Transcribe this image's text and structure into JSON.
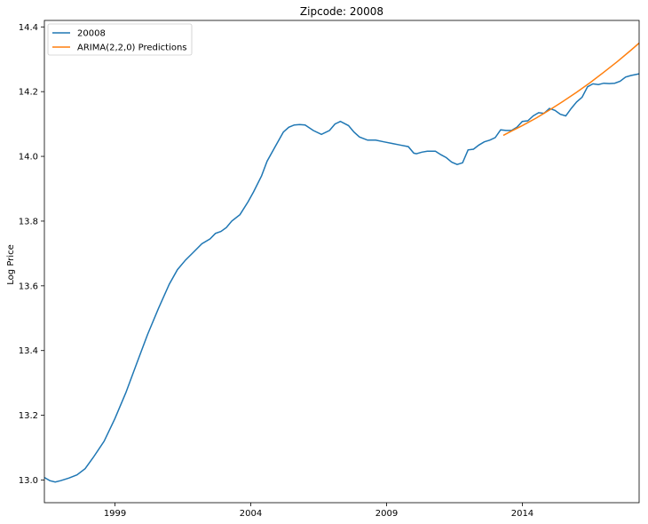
{
  "chart_data": {
    "type": "line",
    "title": "Zipcode: 20008",
    "xlabel": "",
    "ylabel": "Log Price",
    "xlim": [
      1996.4,
      2018.3
    ],
    "ylim": [
      12.93,
      14.42
    ],
    "x_ticks": [
      1999,
      2004,
      2009,
      2014
    ],
    "x_tick_labels": [
      "1999",
      "2004",
      "2009",
      "2014"
    ],
    "y_ticks": [
      13.0,
      13.2,
      13.4,
      13.6,
      13.8,
      14.0,
      14.2,
      14.4
    ],
    "y_tick_labels": [
      "13.0",
      "13.2",
      "13.4",
      "13.6",
      "13.8",
      "14.0",
      "14.2",
      "14.4"
    ],
    "grid": false,
    "legend_position": "top-left",
    "series": [
      {
        "name": "20008",
        "color": "#1f77b4",
        "x": [
          1996.4,
          1996.6,
          1996.8,
          1997.0,
          1997.3,
          1997.6,
          1997.9,
          1998.2,
          1998.6,
          1999.0,
          1999.4,
          1999.8,
          2000.2,
          2000.6,
          2001.0,
          2001.3,
          2001.6,
          2001.9,
          2002.2,
          2002.5,
          2002.7,
          2002.9,
          2003.1,
          2003.3,
          2003.6,
          2003.9,
          2004.1,
          2004.4,
          2004.6,
          2004.9,
          2005.2,
          2005.4,
          2005.6,
          2005.8,
          2006.0,
          2006.3,
          2006.6,
          2006.9,
          2007.1,
          2007.3,
          2007.6,
          2007.8,
          2008.0,
          2008.3,
          2008.6,
          2008.9,
          2009.2,
          2009.5,
          2009.8,
          2010.0,
          2010.1,
          2010.3,
          2010.5,
          2010.8,
          2011.0,
          2011.2,
          2011.4,
          2011.6,
          2011.8,
          2012.0,
          2012.2,
          2012.4,
          2012.6,
          2012.8,
          2013.0,
          2013.2,
          2013.4,
          2013.6,
          2013.8,
          2014.0,
          2014.2,
          2014.4,
          2014.6,
          2014.8,
          2015.0,
          2015.2,
          2015.4,
          2015.6,
          2015.8,
          2016.0,
          2016.2,
          2016.4,
          2016.6,
          2016.8,
          2017.0,
          2017.2,
          2017.4,
          2017.6,
          2017.8,
          2018.0,
          2018.3
        ],
        "y": [
          13.008,
          12.998,
          12.994,
          12.998,
          13.006,
          13.016,
          13.035,
          13.07,
          13.12,
          13.19,
          13.27,
          13.36,
          13.45,
          13.53,
          13.605,
          13.65,
          13.68,
          13.705,
          13.73,
          13.745,
          13.762,
          13.768,
          13.78,
          13.8,
          13.82,
          13.86,
          13.89,
          13.94,
          13.985,
          14.03,
          14.075,
          14.09,
          14.097,
          14.098,
          14.097,
          14.08,
          14.068,
          14.08,
          14.1,
          14.108,
          14.095,
          14.075,
          14.06,
          14.05,
          14.05,
          14.045,
          14.04,
          14.035,
          14.03,
          14.01,
          14.008,
          14.013,
          14.016,
          14.016,
          14.005,
          13.996,
          13.982,
          13.975,
          13.98,
          14.02,
          14.022,
          14.035,
          14.045,
          14.05,
          14.058,
          14.082,
          14.08,
          14.08,
          14.09,
          14.108,
          14.11,
          14.125,
          14.135,
          14.133,
          14.148,
          14.142,
          14.13,
          14.125,
          14.148,
          14.168,
          14.183,
          14.215,
          14.224,
          14.222,
          14.226,
          14.225,
          14.226,
          14.232,
          14.245,
          14.25,
          14.255
        ]
      },
      {
        "name": "ARIMA(2,2,0) Predictions",
        "color": "#ff7f0e",
        "x": [
          2013.3,
          2013.6,
          2014.0,
          2014.5,
          2015.0,
          2015.5,
          2016.0,
          2016.5,
          2017.0,
          2017.5,
          2018.0,
          2018.3
        ],
        "y": [
          14.065,
          14.078,
          14.095,
          14.118,
          14.143,
          14.17,
          14.198,
          14.228,
          14.26,
          14.293,
          14.328,
          14.35
        ]
      }
    ]
  }
}
